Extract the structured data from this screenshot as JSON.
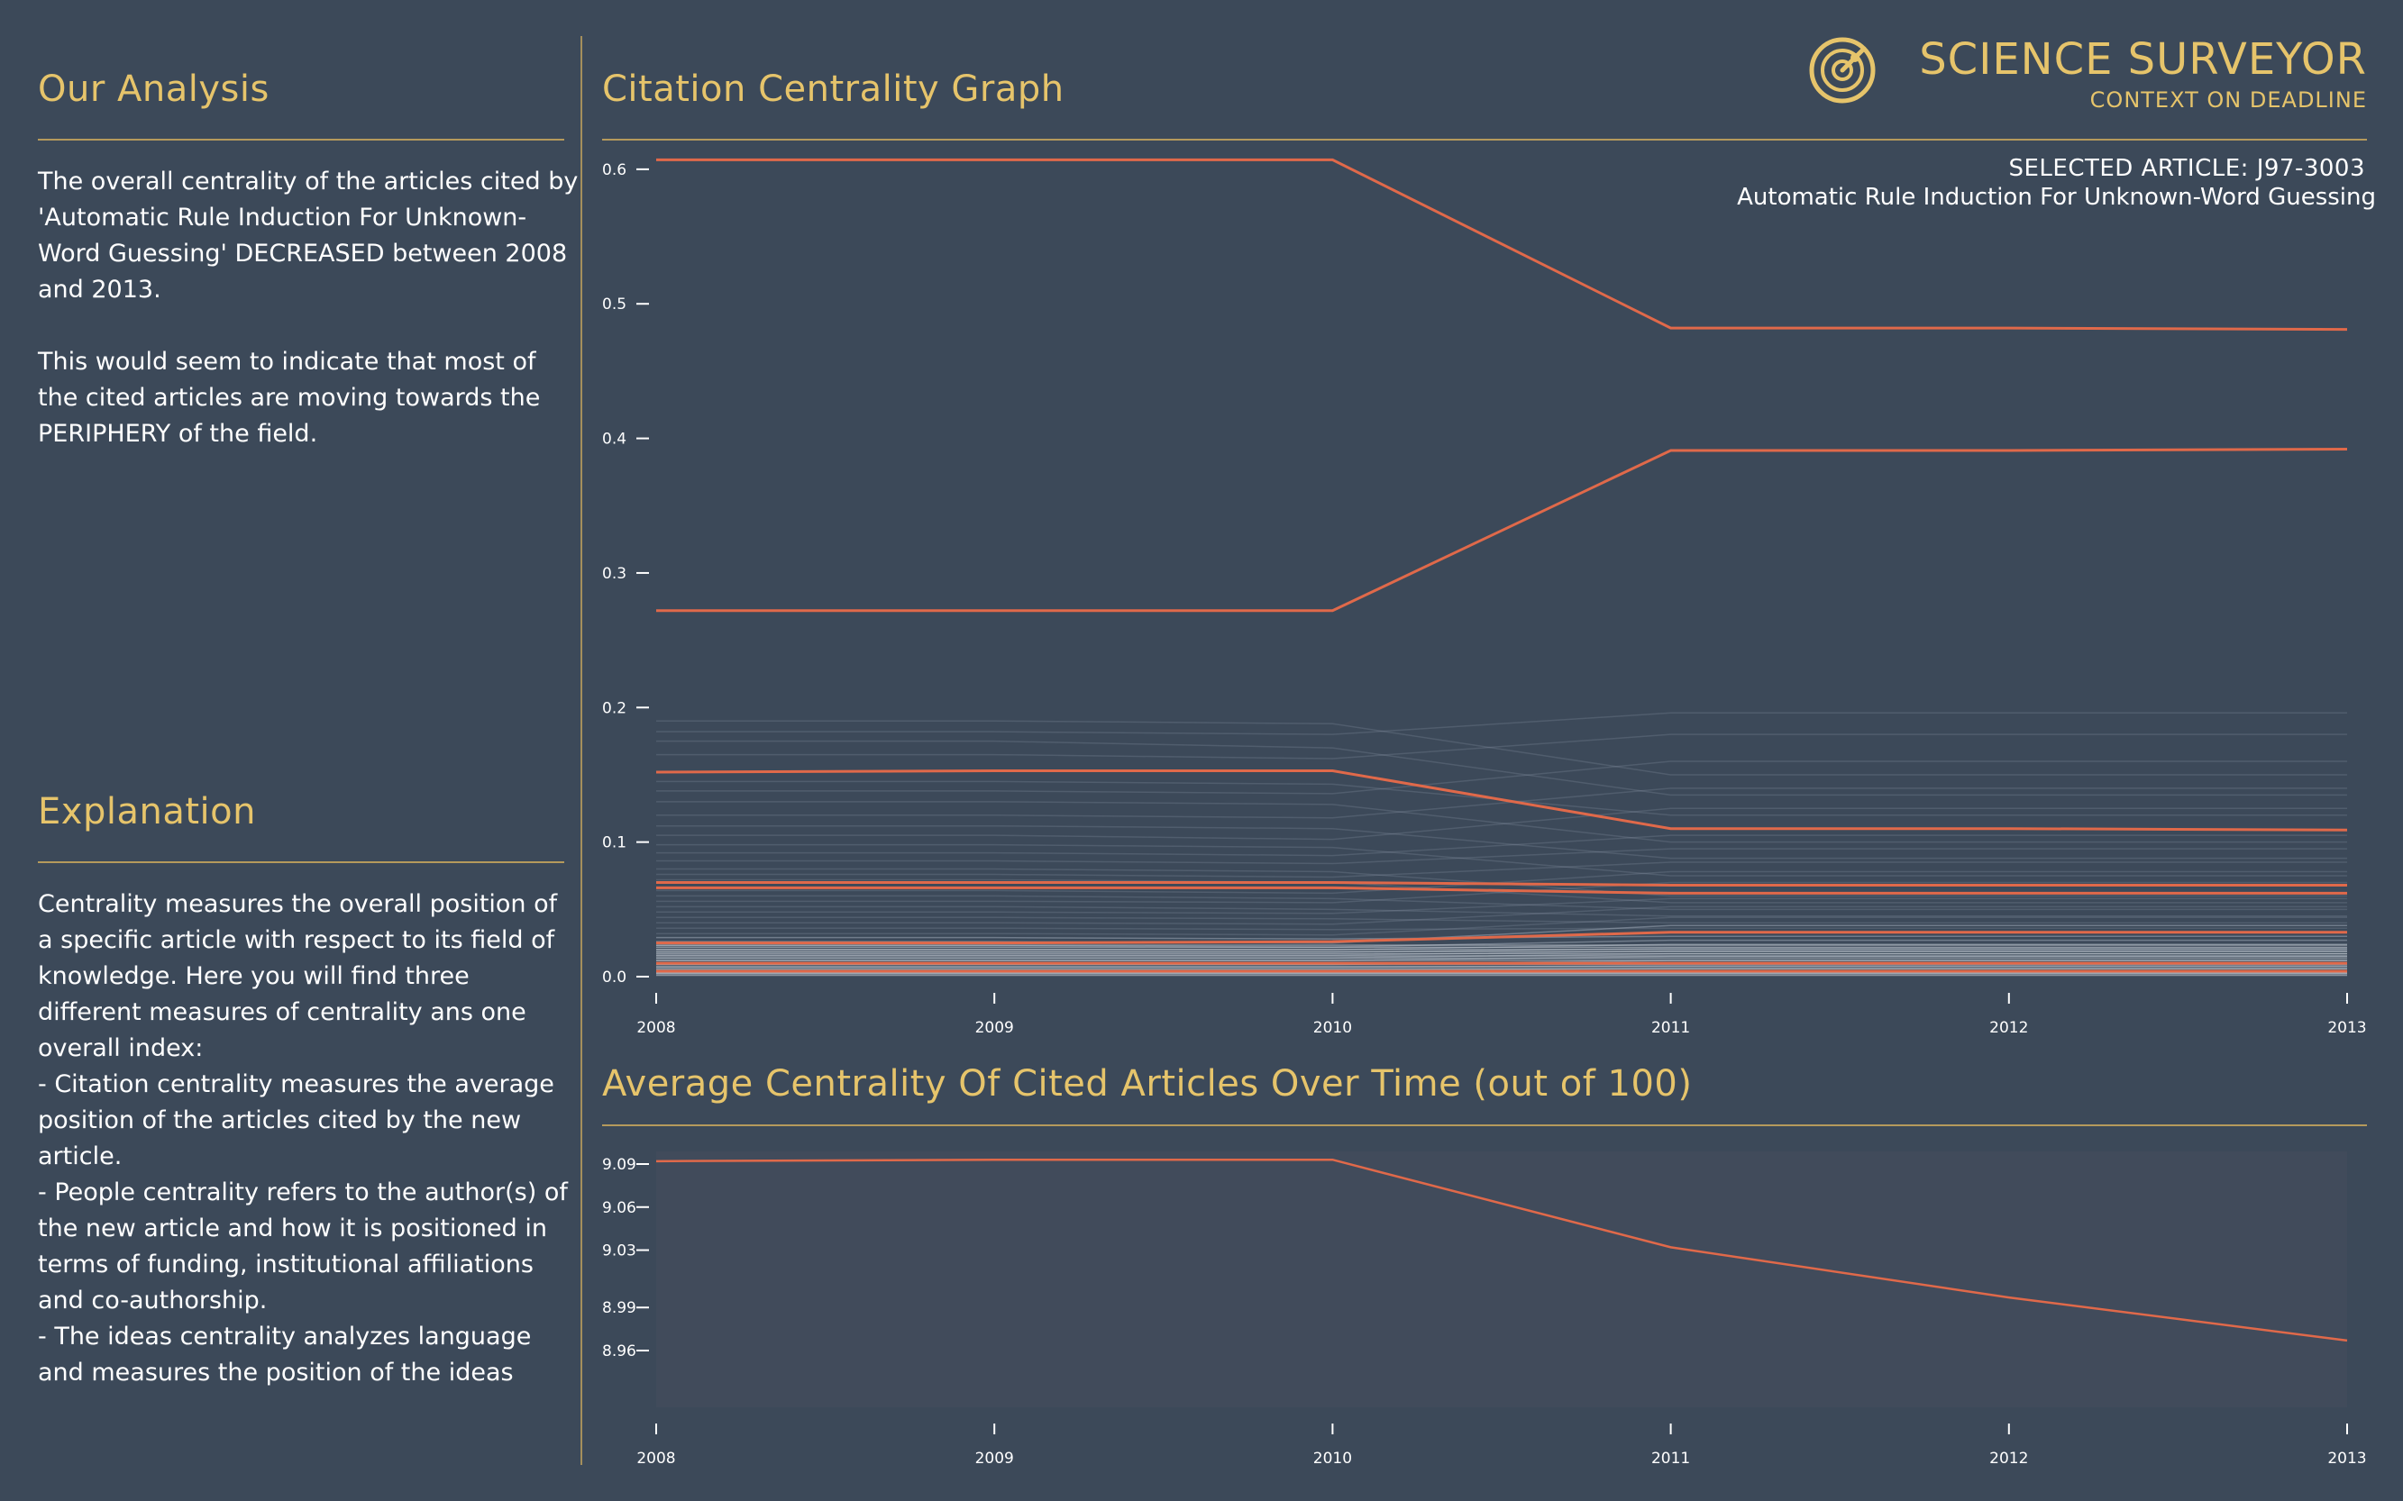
{
  "brand": {
    "name": "SCIENCE SURVEYOR",
    "tagline": "CONTEXT ON DEADLINE",
    "logo_icon": "radar-target-icon"
  },
  "analysis": {
    "title": "Our Analysis",
    "paragraph1": "The overall centrality of the articles cited by 'Automatic Rule Induction For Unknown-Word Guessing' DECREASED between 2008 and 2013.",
    "paragraph2": "This would seem to indicate that most of the cited articles are moving towards the PERIPHERY of the field."
  },
  "explanation": {
    "title": "Explanation",
    "text": "Centrality measures the overall position of a specific article with respect to its field of knowledge. Here you will find three different measures of centrality ans one overall index:\n- Citation centrality measures the average position of the articles cited by the new article.\n- People centrality refers to the author(s) of the new article and how it is positioned in terms of funding, institutional affiliations and co-authorship.\n- The ideas centrality analyzes language and measures the position of the ideas"
  },
  "selected": {
    "id_label": "SELECTED ARTICLE: J97-3003",
    "title": "Automatic Rule Induction For Unknown-Word Guessing"
  },
  "colors": {
    "background": "#3c4959",
    "accent_gold": "#e6c46b",
    "line_orange": "#e0694a",
    "background_lines": "#9aa6b4"
  },
  "chart_data": [
    {
      "type": "line",
      "title": "Citation Centrality Graph",
      "x": [
        "2008",
        "2009",
        "2010",
        "2011",
        "2012",
        "2013"
      ],
      "ylim": [
        0,
        0.62
      ],
      "yticks": [
        "0.0",
        "0.1",
        "0.2",
        "0.3",
        "0.4",
        "0.5",
        "0.6"
      ],
      "highlight_series": [
        {
          "values": [
            0.607,
            0.607,
            0.607,
            0.482,
            0.482,
            0.481
          ]
        },
        {
          "values": [
            0.272,
            0.272,
            0.272,
            0.391,
            0.391,
            0.392
          ]
        },
        {
          "values": [
            0.152,
            0.153,
            0.153,
            0.11,
            0.11,
            0.109
          ]
        },
        {
          "values": [
            0.07,
            0.07,
            0.07,
            0.068,
            0.068,
            0.068
          ]
        },
        {
          "values": [
            0.066,
            0.066,
            0.066,
            0.062,
            0.062,
            0.062
          ]
        },
        {
          "values": [
            0.025,
            0.025,
            0.026,
            0.033,
            0.033,
            0.033
          ]
        },
        {
          "values": [
            0.01,
            0.01,
            0.01,
            0.01,
            0.01,
            0.01
          ]
        },
        {
          "values": [
            0.004,
            0.004,
            0.004,
            0.004,
            0.004,
            0.004
          ]
        }
      ],
      "background_series": [
        [
          0.19,
          0.19,
          0.188,
          0.15,
          0.15,
          0.15
        ],
        [
          0.182,
          0.182,
          0.18,
          0.196,
          0.196,
          0.196
        ],
        [
          0.175,
          0.175,
          0.17,
          0.135,
          0.135,
          0.135
        ],
        [
          0.165,
          0.165,
          0.162,
          0.18,
          0.18,
          0.18
        ],
        [
          0.145,
          0.145,
          0.143,
          0.12,
          0.12,
          0.12
        ],
        [
          0.138,
          0.138,
          0.136,
          0.16,
          0.16,
          0.16
        ],
        [
          0.13,
          0.13,
          0.128,
          0.1,
          0.1,
          0.1
        ],
        [
          0.12,
          0.12,
          0.118,
          0.14,
          0.14,
          0.14
        ],
        [
          0.112,
          0.112,
          0.11,
          0.088,
          0.088,
          0.088
        ],
        [
          0.105,
          0.105,
          0.102,
          0.125,
          0.125,
          0.125
        ],
        [
          0.098,
          0.098,
          0.096,
          0.075,
          0.075,
          0.075
        ],
        [
          0.092,
          0.092,
          0.09,
          0.105,
          0.105,
          0.105
        ],
        [
          0.086,
          0.086,
          0.084,
          0.095,
          0.095,
          0.095
        ],
        [
          0.08,
          0.08,
          0.078,
          0.06,
          0.06,
          0.06
        ],
        [
          0.076,
          0.076,
          0.074,
          0.085,
          0.085,
          0.085
        ],
        [
          0.072,
          0.072,
          0.07,
          0.055,
          0.055,
          0.055
        ],
        [
          0.064,
          0.064,
          0.062,
          0.078,
          0.078,
          0.078
        ],
        [
          0.06,
          0.06,
          0.058,
          0.05,
          0.05,
          0.05
        ],
        [
          0.056,
          0.056,
          0.055,
          0.07,
          0.07,
          0.07
        ],
        [
          0.052,
          0.052,
          0.05,
          0.045,
          0.045,
          0.045
        ],
        [
          0.048,
          0.048,
          0.047,
          0.058,
          0.058,
          0.058
        ],
        [
          0.044,
          0.044,
          0.043,
          0.04,
          0.04,
          0.04
        ],
        [
          0.04,
          0.04,
          0.039,
          0.052,
          0.052,
          0.052
        ],
        [
          0.036,
          0.036,
          0.035,
          0.036,
          0.036,
          0.036
        ],
        [
          0.032,
          0.032,
          0.031,
          0.044,
          0.044,
          0.044
        ],
        [
          0.029,
          0.029,
          0.028,
          0.03,
          0.03,
          0.03
        ],
        [
          0.026,
          0.026,
          0.025,
          0.038,
          0.038,
          0.038
        ],
        [
          0.023,
          0.023,
          0.022,
          0.027,
          0.027,
          0.027
        ],
        [
          0.02,
          0.02,
          0.02,
          0.024,
          0.024,
          0.024
        ],
        [
          0.018,
          0.018,
          0.018,
          0.021,
          0.021,
          0.021
        ],
        [
          0.016,
          0.016,
          0.016,
          0.019,
          0.019,
          0.019
        ],
        [
          0.014,
          0.014,
          0.014,
          0.017,
          0.017,
          0.017
        ],
        [
          0.012,
          0.012,
          0.012,
          0.015,
          0.015,
          0.015
        ],
        [
          0.009,
          0.009,
          0.009,
          0.012,
          0.012,
          0.012
        ],
        [
          0.007,
          0.007,
          0.007,
          0.008,
          0.008,
          0.008
        ],
        [
          0.005,
          0.005,
          0.005,
          0.006,
          0.006,
          0.006
        ],
        [
          0.003,
          0.003,
          0.003,
          0.003,
          0.003,
          0.003
        ],
        [
          0.002,
          0.002,
          0.002,
          0.002,
          0.002,
          0.002
        ]
      ]
    },
    {
      "type": "line",
      "title": "Average Centrality Of Cited Articles Over Time (out of 100)",
      "x": [
        "2008",
        "2009",
        "2010",
        "2011",
        "2012",
        "2013"
      ],
      "ylim": [
        8.92,
        9.1
      ],
      "yticks": [
        "8.96",
        "8.99",
        "9.03",
        "9.06",
        "9.09"
      ],
      "series": [
        {
          "values": [
            9.092,
            9.093,
            9.093,
            9.032,
            8.997,
            8.967
          ]
        }
      ]
    }
  ]
}
